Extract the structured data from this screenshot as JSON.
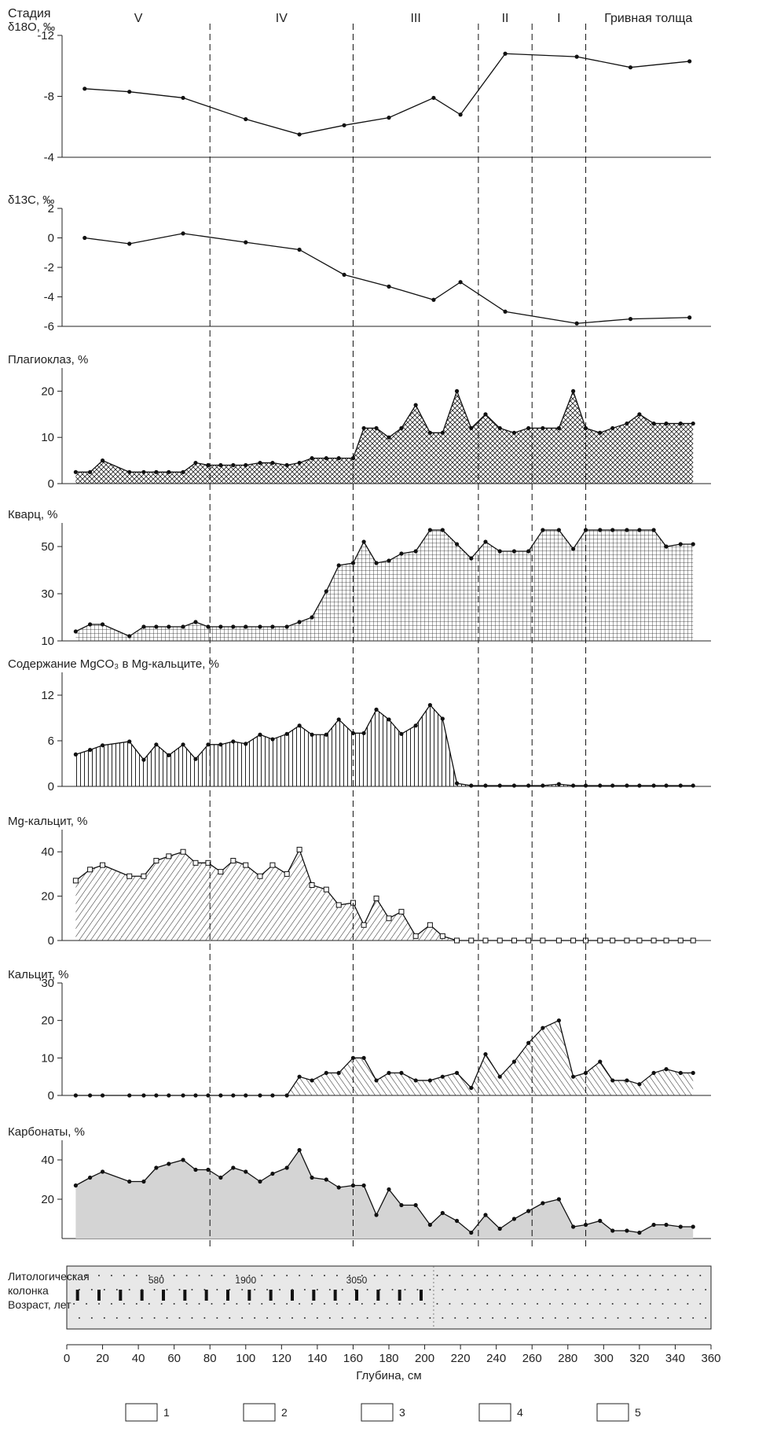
{
  "depth_axis": {
    "label": "Глубина, см",
    "ticks": [
      0,
      20,
      40,
      60,
      80,
      100,
      120,
      140,
      160,
      180,
      200,
      220,
      240,
      260,
      280,
      300,
      320,
      340,
      360
    ],
    "range": [
      0,
      360
    ]
  },
  "stage_title": "Стадия",
  "stages": [
    {
      "label": "V",
      "from": 0,
      "to": 80
    },
    {
      "label": "IV",
      "from": 80,
      "to": 160
    },
    {
      "label": "III",
      "from": 160,
      "to": 230
    },
    {
      "label": "II",
      "from": 230,
      "to": 260
    },
    {
      "label": "I",
      "from": 260,
      "to": 290
    },
    {
      "label": "Гривная толща",
      "from": 290,
      "to": 360
    }
  ],
  "boundaries": [
    80,
    160,
    230,
    260,
    290
  ],
  "lith_column": {
    "title_lines": [
      "Литологическая",
      "колонка",
      "Возраст, лет"
    ],
    "ages": [
      {
        "depth": 50,
        "label": "580"
      },
      {
        "depth": 100,
        "label": "1900"
      },
      {
        "depth": 162,
        "label": "3050"
      }
    ],
    "unit_boundary": 205
  },
  "legend": {
    "items": [
      {
        "num": "1",
        "pattern": "dashes"
      },
      {
        "num": "2",
        "pattern": "dash-dot"
      },
      {
        "num": "3",
        "pattern": "dots"
      },
      {
        "num": "4",
        "pattern": "plant"
      },
      {
        "num": "5",
        "pattern": "shell"
      }
    ]
  },
  "colors": {
    "carbonate_fill": "#d4d4d4",
    "line": "#111111",
    "panel_bg": "#e8e8e8"
  },
  "chart_data": [
    {
      "type": "area",
      "label": "Карбонаты, %",
      "range": [
        0,
        50
      ],
      "ticks": [
        20,
        40
      ],
      "fill": "gray",
      "marker": "dot",
      "x": [
        5,
        13,
        20,
        35,
        43,
        50,
        57,
        65,
        72,
        79,
        86,
        93,
        100,
        108,
        115,
        123,
        130,
        137,
        145,
        152,
        160,
        166,
        173,
        180,
        187,
        195,
        203,
        210,
        218,
        226,
        234,
        242,
        250,
        258,
        266,
        275,
        283,
        290,
        298,
        305,
        313,
        320,
        328,
        335,
        343,
        350
      ],
      "y": [
        27,
        31,
        34,
        29,
        29,
        36,
        38,
        40,
        35,
        35,
        31,
        36,
        34,
        29,
        33,
        36,
        45,
        31,
        30,
        26,
        27,
        27,
        12,
        25,
        17,
        17,
        7,
        13,
        9,
        3,
        12,
        5,
        10,
        14,
        18,
        20,
        6,
        7,
        9,
        4,
        4,
        3,
        7,
        7,
        6,
        6
      ]
    },
    {
      "type": "area",
      "label": "Кальцит, %",
      "range": [
        0,
        30
      ],
      "ticks": [
        0,
        10,
        20,
        30
      ],
      "fill": "diag-back",
      "marker": "dot",
      "x": [
        5,
        13,
        20,
        35,
        43,
        50,
        57,
        65,
        72,
        79,
        86,
        93,
        100,
        108,
        115,
        123,
        130,
        137,
        145,
        152,
        160,
        166,
        173,
        180,
        187,
        195,
        203,
        210,
        218,
        226,
        234,
        242,
        250,
        258,
        266,
        275,
        283,
        290,
        298,
        305,
        313,
        320,
        328,
        335,
        343,
        350
      ],
      "y": [
        0,
        0,
        0,
        0,
        0,
        0,
        0,
        0,
        0,
        0,
        0,
        0,
        0,
        0,
        0,
        0,
        5,
        4,
        6,
        6,
        10,
        10,
        4,
        6,
        6,
        4,
        4,
        5,
        6,
        2,
        11,
        5,
        9,
        14,
        18,
        20,
        5,
        6,
        9,
        4,
        4,
        3,
        6,
        7,
        6,
        6
      ]
    },
    {
      "type": "area",
      "label": "Mg-кальцит, %",
      "range": [
        0,
        50
      ],
      "ticks": [
        0,
        20,
        40
      ],
      "fill": "diag-fwd",
      "marker": "square",
      "x": [
        5,
        13,
        20,
        35,
        43,
        50,
        57,
        65,
        72,
        79,
        86,
        93,
        100,
        108,
        115,
        123,
        130,
        137,
        145,
        152,
        160,
        166,
        173,
        180,
        187,
        195,
        203,
        210,
        218,
        226,
        234,
        242,
        250,
        258,
        266,
        275,
        283,
        290,
        298,
        305,
        313,
        320,
        328,
        335,
        343,
        350
      ],
      "y": [
        27,
        32,
        34,
        29,
        29,
        36,
        38,
        40,
        35,
        35,
        31,
        36,
        34,
        29,
        34,
        30,
        41,
        25,
        23,
        16,
        17,
        7,
        19,
        10,
        13,
        2,
        7,
        2,
        0,
        0,
        0,
        0,
        0,
        0,
        0,
        0,
        0,
        0,
        0,
        0,
        0,
        0,
        0,
        0,
        0,
        0
      ]
    },
    {
      "type": "area",
      "label": "Содержание MgCO₃ в Mg-кальците, %",
      "range": [
        0,
        15
      ],
      "ticks": [
        0,
        6,
        12
      ],
      "fill": "vertical",
      "marker": "dot",
      "x": [
        5,
        13,
        20,
        35,
        43,
        50,
        57,
        65,
        72,
        79,
        86,
        93,
        100,
        108,
        115,
        123,
        130,
        137,
        145,
        152,
        160,
        166,
        173,
        180,
        187,
        195,
        203,
        210,
        218,
        226,
        234,
        242,
        250,
        258,
        266,
        275,
        283,
        290,
        298,
        305,
        313,
        320,
        328,
        335,
        343,
        350
      ],
      "y": [
        4.2,
        4.8,
        5.4,
        5.9,
        3.5,
        5.5,
        4.1,
        5.5,
        3.6,
        5.5,
        5.5,
        5.9,
        5.6,
        6.8,
        6.2,
        6.9,
        8.0,
        6.8,
        6.8,
        8.8,
        7.0,
        7.0,
        10.1,
        8.8,
        6.9,
        8.0,
        10.7,
        8.9,
        0.4,
        0.1,
        0.1,
        0.1,
        0.1,
        0.1,
        0.1,
        0.3,
        0.1,
        0.1,
        0.1,
        0.1,
        0.1,
        0.1,
        0.1,
        0.1,
        0.1,
        0.1
      ]
    },
    {
      "type": "area",
      "label": "Кварц, %",
      "range": [
        10,
        60
      ],
      "ticks": [
        10,
        30,
        50
      ],
      "fill": "grid",
      "marker": "dot",
      "x": [
        5,
        13,
        20,
        35,
        43,
        50,
        57,
        65,
        72,
        79,
        86,
        93,
        100,
        108,
        115,
        123,
        130,
        137,
        145,
        152,
        160,
        166,
        173,
        180,
        187,
        195,
        203,
        210,
        218,
        226,
        234,
        242,
        250,
        258,
        266,
        275,
        283,
        290,
        298,
        305,
        313,
        320,
        328,
        335,
        343,
        350
      ],
      "y": [
        14,
        17,
        17,
        12,
        16,
        16,
        16,
        16,
        18,
        16,
        16,
        16,
        16,
        16,
        16,
        16,
        18,
        20,
        31,
        42,
        43,
        52,
        43,
        44,
        47,
        48,
        57,
        57,
        51,
        45,
        52,
        48,
        48,
        48,
        57,
        57,
        49,
        57,
        57,
        57,
        57,
        57,
        57,
        50,
        51,
        51
      ]
    },
    {
      "type": "area",
      "label": "Плагиоклаз, %",
      "range": [
        0,
        25
      ],
      "ticks": [
        0,
        10,
        20
      ],
      "fill": "crosshatch",
      "marker": "dot",
      "x": [
        5,
        13,
        20,
        35,
        43,
        50,
        57,
        65,
        72,
        79,
        86,
        93,
        100,
        108,
        115,
        123,
        130,
        137,
        145,
        152,
        160,
        166,
        173,
        180,
        187,
        195,
        203,
        210,
        218,
        226,
        234,
        242,
        250,
        258,
        266,
        275,
        283,
        290,
        298,
        305,
        313,
        320,
        328,
        335,
        343,
        350
      ],
      "y": [
        2.5,
        2.5,
        5,
        2.5,
        2.5,
        2.5,
        2.5,
        2.5,
        4.5,
        4,
        4,
        4,
        4,
        4.5,
        4.5,
        4,
        4.5,
        5.5,
        5.5,
        5.5,
        5.5,
        12,
        12,
        10,
        12,
        17,
        11,
        11,
        20,
        12,
        15,
        12,
        11,
        12,
        12,
        12,
        20,
        12,
        11,
        12,
        13,
        15,
        13,
        13,
        13,
        13
      ]
    },
    {
      "type": "line",
      "label": "δ13C, ‰",
      "range": [
        -6,
        2
      ],
      "ticks": [
        -6,
        -4,
        -2,
        0,
        2
      ],
      "reversed": false,
      "marker": "dot",
      "x": [
        10,
        35,
        65,
        100,
        130,
        155,
        180,
        205,
        220,
        245,
        285,
        315,
        348
      ],
      "y": [
        0.0,
        -0.4,
        0.3,
        -0.3,
        -0.8,
        -2.5,
        -3.3,
        -4.2,
        -3.0,
        -5.0,
        -5.8,
        -5.5,
        -5.4
      ]
    },
    {
      "type": "line",
      "label": "δ18O, ‰",
      "range": [
        -4,
        -12
      ],
      "ticks": [
        -12,
        -8,
        -4
      ],
      "reversed": true,
      "marker": "dot",
      "x": [
        10,
        35,
        65,
        100,
        130,
        155,
        180,
        205,
        220,
        245,
        285,
        315,
        348
      ],
      "y": [
        -8.5,
        -8.3,
        -7.9,
        -6.5,
        -5.5,
        -6.1,
        -6.6,
        -7.9,
        -6.8,
        -10.8,
        -10.6,
        -9.9,
        -10.3
      ]
    }
  ]
}
